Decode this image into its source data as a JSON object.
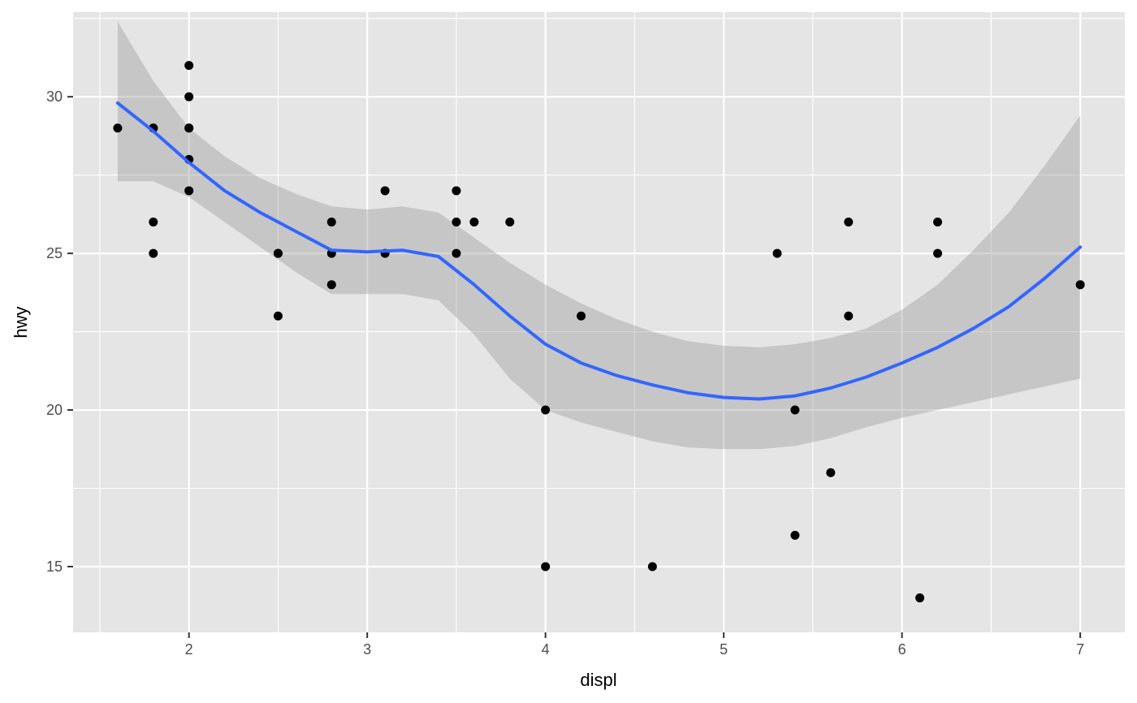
{
  "chart_data": {
    "type": "scatter",
    "title": "",
    "xlabel": "displ",
    "ylabel": "hwy",
    "xlim": [
      1.35,
      7.25
    ],
    "ylim": [
      12.9,
      32.7
    ],
    "x_major_ticks": [
      2,
      3,
      4,
      5,
      6,
      7
    ],
    "x_minor_ticks": [
      1.5,
      2.5,
      3.5,
      4.5,
      5.5,
      6.5
    ],
    "y_major_ticks": [
      15,
      20,
      25,
      30
    ],
    "y_minor_ticks": [
      17.5,
      22.5,
      27.5,
      32.5
    ],
    "x_tick_labels": [
      "2",
      "3",
      "4",
      "5",
      "6",
      "7"
    ],
    "y_tick_labels": [
      "15",
      "20",
      "25",
      "30"
    ],
    "grid": true,
    "colors": {
      "panel_background": "#e5e5e5",
      "grid_line": "#ffffff",
      "points": "#000000",
      "smooth_line": "#3366ff",
      "confidence_band": "#999999"
    },
    "points": [
      {
        "x": 1.6,
        "y": 29
      },
      {
        "x": 1.8,
        "y": 29
      },
      {
        "x": 1.8,
        "y": 29
      },
      {
        "x": 1.8,
        "y": 26
      },
      {
        "x": 1.8,
        "y": 25
      },
      {
        "x": 2.0,
        "y": 31
      },
      {
        "x": 2.0,
        "y": 30
      },
      {
        "x": 2.0,
        "y": 29
      },
      {
        "x": 2.0,
        "y": 29
      },
      {
        "x": 2.0,
        "y": 28
      },
      {
        "x": 2.0,
        "y": 27
      },
      {
        "x": 2.5,
        "y": 25
      },
      {
        "x": 2.5,
        "y": 25
      },
      {
        "x": 2.5,
        "y": 23
      },
      {
        "x": 2.8,
        "y": 26
      },
      {
        "x": 2.8,
        "y": 25
      },
      {
        "x": 2.8,
        "y": 24
      },
      {
        "x": 3.1,
        "y": 27
      },
      {
        "x": 3.1,
        "y": 25
      },
      {
        "x": 3.5,
        "y": 27
      },
      {
        "x": 3.5,
        "y": 26
      },
      {
        "x": 3.5,
        "y": 25
      },
      {
        "x": 3.6,
        "y": 26
      },
      {
        "x": 3.8,
        "y": 26
      },
      {
        "x": 4.0,
        "y": 20
      },
      {
        "x": 4.0,
        "y": 15
      },
      {
        "x": 4.2,
        "y": 23
      },
      {
        "x": 4.6,
        "y": 15
      },
      {
        "x": 5.3,
        "y": 25
      },
      {
        "x": 5.4,
        "y": 20
      },
      {
        "x": 5.4,
        "y": 16
      },
      {
        "x": 5.6,
        "y": 18
      },
      {
        "x": 5.7,
        "y": 26
      },
      {
        "x": 5.7,
        "y": 23
      },
      {
        "x": 6.1,
        "y": 14
      },
      {
        "x": 6.2,
        "y": 26
      },
      {
        "x": 6.2,
        "y": 25
      },
      {
        "x": 7.0,
        "y": 24
      }
    ],
    "smooth": {
      "method": "loess",
      "x": [
        1.6,
        1.8,
        2.0,
        2.2,
        2.4,
        2.6,
        2.8,
        3.0,
        3.2,
        3.4,
        3.6,
        3.8,
        4.0,
        4.2,
        4.4,
        4.6,
        4.8,
        5.0,
        5.2,
        5.4,
        5.6,
        5.8,
        6.0,
        6.2,
        6.4,
        6.6,
        6.8,
        7.0
      ],
      "y": [
        29.8,
        28.9,
        27.9,
        27.0,
        26.3,
        25.7,
        25.1,
        25.05,
        25.1,
        24.9,
        24.0,
        23.0,
        22.1,
        21.5,
        21.1,
        20.8,
        20.55,
        20.4,
        20.35,
        20.45,
        20.7,
        21.05,
        21.5,
        22.0,
        22.6,
        23.3,
        24.2,
        25.2
      ],
      "lower": [
        27.3,
        27.3,
        26.8,
        26.0,
        25.2,
        24.4,
        23.7,
        23.7,
        23.7,
        23.5,
        22.4,
        21.0,
        20.0,
        19.6,
        19.3,
        19.0,
        18.8,
        18.75,
        18.75,
        18.85,
        19.1,
        19.45,
        19.75,
        20.0,
        20.25,
        20.5,
        20.75,
        21.0
      ],
      "upper": [
        32.4,
        30.5,
        29.0,
        28.1,
        27.4,
        26.9,
        26.5,
        26.4,
        26.5,
        26.3,
        25.5,
        24.7,
        24.0,
        23.4,
        22.9,
        22.5,
        22.2,
        22.05,
        22.0,
        22.1,
        22.3,
        22.6,
        23.2,
        24.0,
        25.1,
        26.3,
        27.8,
        29.4
      ]
    }
  }
}
